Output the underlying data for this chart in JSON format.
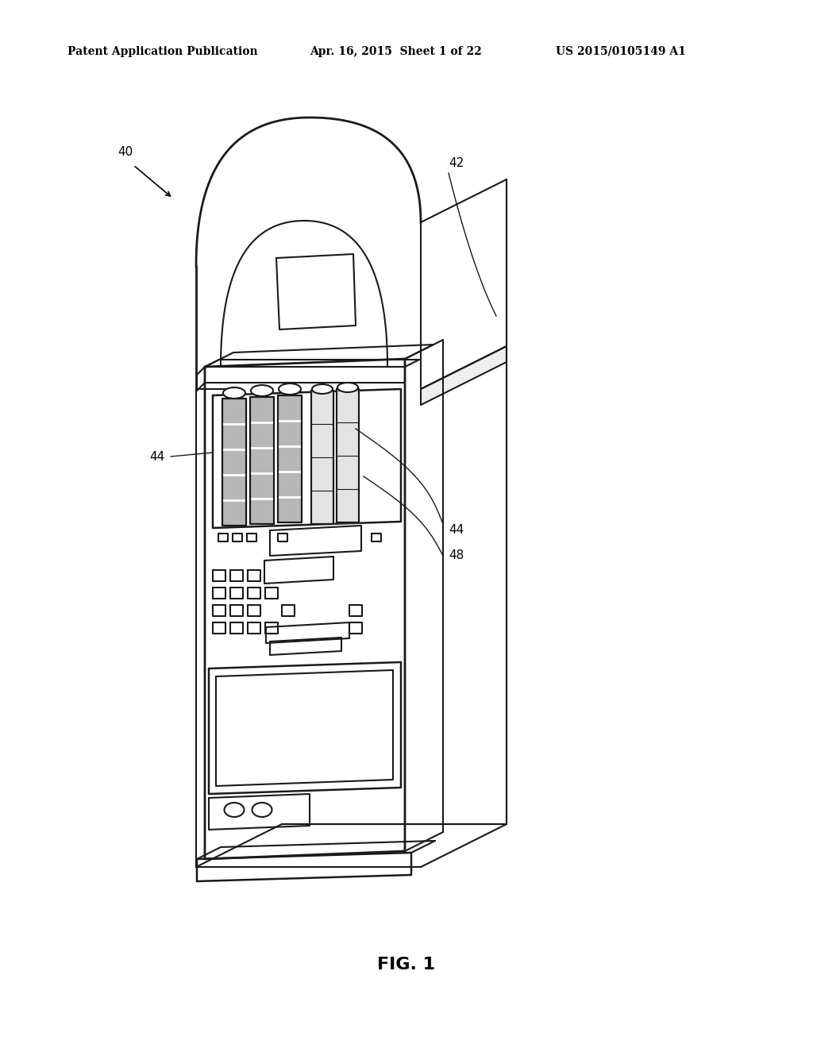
{
  "background_color": "#ffffff",
  "header_left": "Patent Application Publication",
  "header_center": "Apr. 16, 2015  Sheet 1 of 22",
  "header_right": "US 2015/0105149 A1",
  "header_fontsize": 10,
  "figure_label": "FIG. 1",
  "figure_label_fontsize": 16,
  "ref_40": "40",
  "ref_42": "42",
  "ref_44a": "44",
  "ref_44b": "44",
  "ref_48": "48",
  "line_color": "#1a1a1a",
  "line_width": 1.5
}
